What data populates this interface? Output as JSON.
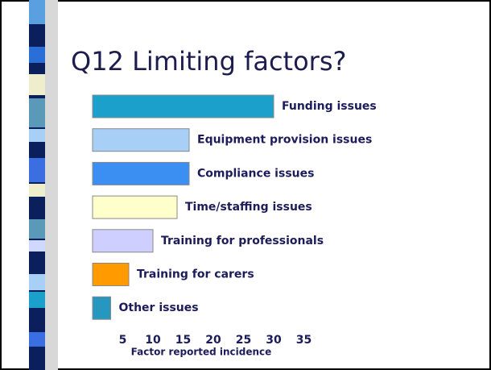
{
  "chart_data": {
    "type": "bar",
    "orientation": "horizontal",
    "title": "Q12 Limiting factors?",
    "categories": [
      "Funding issues",
      "Equipment provision issues",
      "Compliance issues",
      "Time/staffing issues",
      "Training for professionals",
      "Training for carers",
      "Other issues"
    ],
    "values": [
      30,
      16,
      16,
      14,
      10,
      6,
      3
    ],
    "colors": [
      "#1ba0cb",
      "#a8cff6",
      "#3b8ef2",
      "#ffffcc",
      "#cfcfff",
      "#ff9a00",
      "#2698c0"
    ],
    "xlim": [
      0,
      40
    ],
    "xticks": [
      5,
      10,
      15,
      20,
      25,
      30,
      35
    ],
    "xlabel": "Factor reported incidence",
    "grid": false
  }
}
